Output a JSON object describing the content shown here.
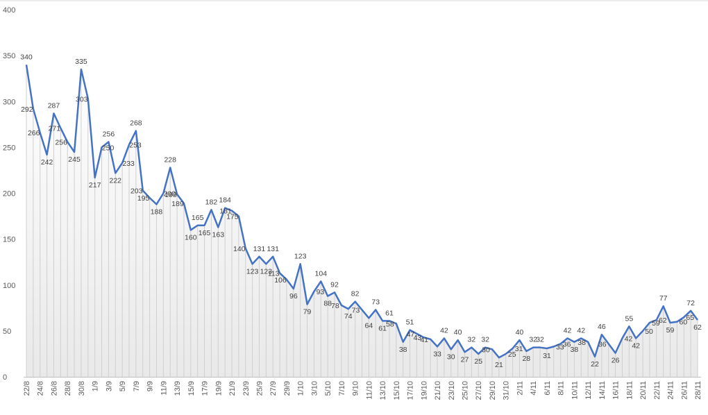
{
  "chart_data": {
    "type": "area",
    "title": "",
    "xlabel": "",
    "ylabel": "",
    "ylim": [
      0,
      400
    ],
    "yticks": [
      0,
      50,
      100,
      150,
      200,
      250,
      300,
      350,
      400
    ],
    "grid": false,
    "legend": "none",
    "line_color": "#4472c4",
    "drop_line_color": "#cfcfcf",
    "x": [
      "22/8",
      "23/8",
      "24/8",
      "25/8",
      "26/8",
      "27/8",
      "28/8",
      "29/8",
      "30/8",
      "31/8",
      "1/9",
      "2/9",
      "3/9",
      "4/9",
      "5/9",
      "6/9",
      "7/9",
      "8/9",
      "9/9",
      "10/9",
      "11/9",
      "12/9",
      "13/9",
      "14/9",
      "15/9",
      "16/9",
      "17/9",
      "18/9",
      "19/9",
      "20/9",
      "21/9",
      "22/9",
      "23/9",
      "24/9",
      "25/9",
      "26/9",
      "27/9",
      "28/9",
      "29/9",
      "30/9",
      "1/10",
      "2/10",
      "3/10",
      "4/10",
      "5/10",
      "6/10",
      "7/10",
      "8/10",
      "9/10",
      "10/10",
      "11/10",
      "12/10",
      "13/10",
      "14/10",
      "15/10",
      "16/10",
      "17/10",
      "18/10",
      "19/10",
      "20/10",
      "21/10",
      "22/10",
      "23/10",
      "24/10",
      "25/10",
      "26/10",
      "27/10",
      "28/10",
      "29/10",
      "30/10",
      "31/10",
      "1/11",
      "2/11",
      "3/11",
      "4/11",
      "5/11",
      "6/11",
      "7/11",
      "8/11",
      "9/11",
      "10/11",
      "11/11",
      "12/11",
      "13/11",
      "14/11",
      "15/11",
      "16/11",
      "17/11",
      "18/11",
      "19/11",
      "20/11",
      "21/11",
      "22/11",
      "23/11",
      "24/11",
      "25/11",
      "26/11",
      "27/11",
      "28/11"
    ],
    "xtick_labels": [
      "22/8",
      "24/8",
      "26/8",
      "28/8",
      "30/8",
      "1/9",
      "3/9",
      "5/9",
      "7/9",
      "9/9",
      "11/9",
      "13/9",
      "15/9",
      "17/9",
      "19/9",
      "21/9",
      "23/9",
      "25/9",
      "27/9",
      "29/9",
      "1/10",
      "3/10",
      "5/10",
      "7/10",
      "9/10",
      "11/10",
      "13/10",
      "15/10",
      "17/10",
      "19/10",
      "21/10",
      "23/10",
      "25/10",
      "27/10",
      "29/10",
      "31/10",
      "2/11",
      "4/11",
      "6/11",
      "8/11",
      "10/11",
      "12/11",
      "14/11",
      "16/11",
      "18/11",
      "20/11",
      "22/11",
      "24/11",
      "26/11",
      "28/11"
    ],
    "series": [
      {
        "name": "",
        "values": [
          340,
          292,
          266,
          242,
          287,
          271,
          256,
          245,
          335,
          303,
          217,
          250,
          256,
          222,
          233,
          253,
          268,
          203,
          195,
          188,
          200,
          228,
          199,
          189,
          160,
          165,
          165,
          182,
          163,
          184,
          181,
          175,
          140,
          123,
          131,
          123,
          131,
          113,
          106,
          96,
          123,
          79,
          93,
          104,
          88,
          92,
          78,
          74,
          82,
          73,
          64,
          73,
          61,
          61,
          58,
          38,
          51,
          47,
          43,
          41,
          33,
          42,
          30,
          40,
          27,
          32,
          25,
          32,
          30,
          21,
          25,
          31,
          40,
          28,
          32,
          32,
          31,
          33,
          36,
          42,
          38,
          42,
          38,
          22,
          46,
          36,
          26,
          42,
          55,
          42,
          50,
          59,
          62,
          77,
          59,
          60,
          65,
          72,
          62
        ]
      }
    ]
  }
}
